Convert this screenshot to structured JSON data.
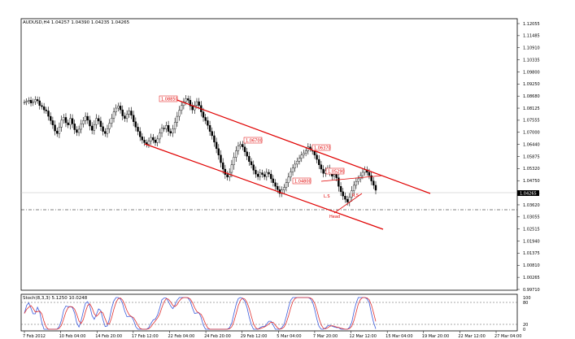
{
  "chart_data": {
    "type": "candlestick",
    "symbol_header": "AUDUSD,H4  1.04257 1.04390 1.04235 1.04265",
    "current_price_label": "1.04265",
    "price_axis": {
      "ticks": [
        "1.12055",
        "1.11485",
        "1.10910",
        "1.10335",
        "1.09800",
        "1.09250",
        "1.08680",
        "1.08125",
        "1.07555",
        "1.07000",
        "1.06440",
        "1.05875",
        "1.05320",
        "1.04750",
        "1.04265",
        "1.03620",
        "1.03055",
        "1.02515",
        "1.01940",
        "1.01375",
        "1.00810",
        "1.00265",
        "0.99710"
      ],
      "ylim": [
        0.9963,
        1.1223
      ]
    },
    "time_axis": {
      "labels": [
        "7 Feb 2012",
        "10 Feb 04:00",
        "14 Feb 20:00",
        "17 Feb 12:00",
        "22 Feb 04:00",
        "24 Feb 20:00",
        "29 Feb 12:00",
        "5 Mar 04:00",
        "7 Mar 20:00",
        "12 Mar 12:00",
        "15 Mar 04:00",
        "19 Mar 20:00",
        "22 Mar 12:00",
        "27 Mar 04:00"
      ]
    },
    "price_series": [
      1.0835,
      1.084,
      1.0845,
      1.0832,
      1.0838,
      1.0848,
      1.0842,
      1.082,
      1.0815,
      1.08,
      1.0795,
      1.077,
      1.075,
      1.073,
      1.0702,
      1.069,
      1.072,
      1.0752,
      1.0765,
      1.074,
      1.073,
      1.076,
      1.0735,
      1.0708,
      1.0695,
      1.071,
      1.0735,
      1.075,
      1.077,
      1.0752,
      1.0725,
      1.0705,
      1.0732,
      1.076,
      1.0748,
      1.0722,
      1.07,
      1.069,
      1.0712,
      1.0738,
      1.0762,
      1.079,
      1.0808,
      1.0818,
      1.08,
      1.0772,
      1.076,
      1.078,
      1.0795,
      1.0775,
      1.0745,
      1.072,
      1.07,
      1.0675,
      1.066,
      1.0648,
      1.064,
      1.0655,
      1.0672,
      1.066,
      1.0648,
      1.0665,
      1.0692,
      1.0715,
      1.0712,
      1.0728,
      1.07,
      1.0692,
      1.0712,
      1.0742,
      1.077,
      1.0798,
      1.082,
      1.0838,
      1.0852,
      1.0845,
      1.0818,
      1.08,
      1.0822,
      1.0838,
      1.082,
      1.079,
      1.0765,
      1.075,
      1.0728,
      1.07,
      1.068,
      1.065,
      1.062,
      1.059,
      1.0555,
      1.0525,
      1.05,
      1.0488,
      1.051,
      1.0545,
      1.058,
      1.061,
      1.0632,
      1.064,
      1.0628,
      1.0605,
      1.0585,
      1.056,
      1.0545,
      1.052,
      1.0502,
      1.049,
      1.0508,
      1.05,
      1.049,
      1.051,
      1.0502,
      1.048,
      1.0462,
      1.0445,
      1.043,
      1.0412,
      1.0428,
      1.044,
      1.0462,
      1.0488,
      1.0512,
      1.053,
      1.0548,
      1.0562,
      1.0575,
      1.059,
      1.06,
      1.061,
      1.0628,
      1.062,
      1.0608,
      1.059,
      1.057,
      1.0545,
      1.0525,
      1.0505,
      1.0518,
      1.0528,
      1.051,
      1.0492,
      1.05,
      1.0485,
      1.0445,
      1.042,
      1.04,
      1.0385,
      1.0372,
      1.0395,
      1.0425,
      1.045,
      1.0468,
      1.048,
      1.0495,
      1.051,
      1.0522,
      1.051,
      1.0495,
      1.047,
      1.045,
      1.0427
    ],
    "annotations": {
      "price_boxes": [
        "1.08850",
        "1.06700",
        "1.06370",
        "1.05290",
        "1.04800"
      ],
      "labels": [
        "L.S",
        "Head",
        "R.S"
      ]
    },
    "stochastic": {
      "header": "Stoch(8,3,3) 5.1250 10.0248",
      "levels": [
        "100",
        "80",
        "20",
        "0"
      ]
    }
  }
}
